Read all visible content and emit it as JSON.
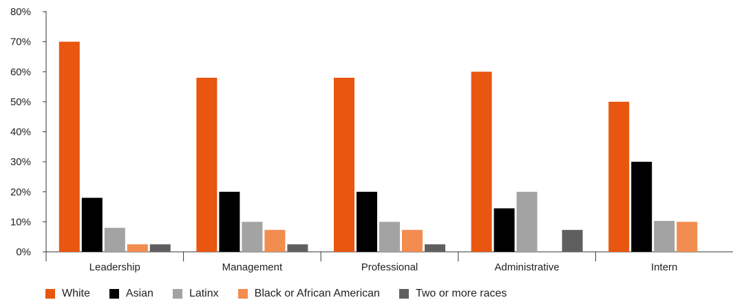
{
  "chart_data": {
    "type": "bar",
    "title": "",
    "xlabel": "",
    "ylabel": "",
    "ylim": [
      0,
      80
    ],
    "y_ticks": [
      "0%",
      "10%",
      "20%",
      "30%",
      "40%",
      "50%",
      "60%",
      "70%",
      "80%"
    ],
    "y_tick_values": [
      0,
      10,
      20,
      30,
      40,
      50,
      60,
      70,
      80
    ],
    "grid": false,
    "legend_position": "bottom",
    "categories": [
      "Leadership",
      "Management",
      "Professional",
      "Administrative",
      "Intern"
    ],
    "series": [
      {
        "name": "White",
        "color": "#e8560f",
        "values": [
          70,
          58,
          58,
          60,
          50
        ]
      },
      {
        "name": "Asian",
        "color": "#000000",
        "values": [
          18,
          20,
          20,
          14.5,
          30
        ]
      },
      {
        "name": "Latinx",
        "color": "#a3a3a3",
        "values": [
          8,
          10,
          10,
          20,
          10.3
        ]
      },
      {
        "name": "Black or African American",
        "color": "#f28c4f",
        "values": [
          2.5,
          7.3,
          7.3,
          0,
          10
        ]
      },
      {
        "name": "Two or more races",
        "color": "#5f5f5f",
        "values": [
          2.5,
          2.5,
          2.5,
          7.3,
          0
        ]
      }
    ]
  }
}
